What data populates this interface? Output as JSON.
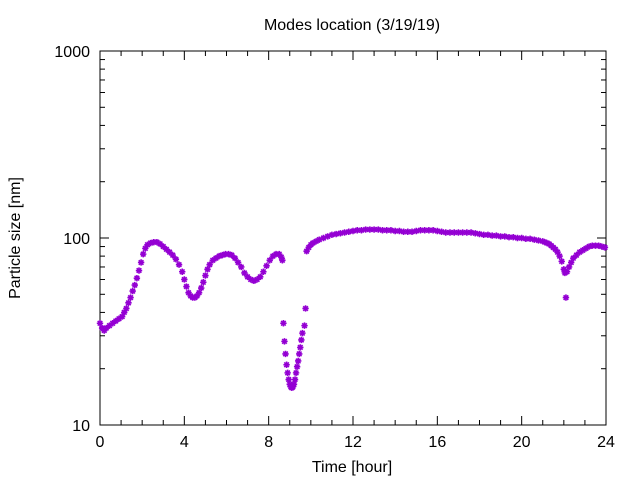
{
  "chart_data": {
    "type": "scatter",
    "title": "Modes location (3/19/19)",
    "xlabel": "Time [hour]",
    "ylabel": "Particle size [nm]",
    "xlim": [
      0,
      24
    ],
    "ylim": [
      10,
      1000
    ],
    "yscale": "log",
    "grid": false,
    "legend": "none",
    "x_ticks": [
      0,
      4,
      8,
      12,
      16,
      20,
      24
    ],
    "x_tick_labels": [
      "0",
      "4",
      "8",
      "12",
      "16",
      "20",
      "24"
    ],
    "y_ticks": [
      10,
      100,
      1000
    ],
    "y_tick_labels": [
      "10",
      "100",
      "1000"
    ],
    "series": [
      {
        "marker": "star",
        "color": "#9400D3",
        "points": [
          [
            0.0,
            35
          ],
          [
            0.1,
            33
          ],
          [
            0.2,
            32
          ],
          [
            0.3,
            33
          ],
          [
            0.45,
            34
          ],
          [
            0.6,
            35
          ],
          [
            0.75,
            36
          ],
          [
            0.9,
            37
          ],
          [
            1.05,
            38
          ],
          [
            1.15,
            40
          ],
          [
            1.25,
            42
          ],
          [
            1.35,
            45
          ],
          [
            1.45,
            48
          ],
          [
            1.55,
            52
          ],
          [
            1.65,
            56
          ],
          [
            1.75,
            61
          ],
          [
            1.85,
            67
          ],
          [
            1.95,
            74
          ],
          [
            2.05,
            82
          ],
          [
            2.15,
            88
          ],
          [
            2.25,
            92
          ],
          [
            2.4,
            94
          ],
          [
            2.55,
            95
          ],
          [
            2.7,
            95
          ],
          [
            2.85,
            93
          ],
          [
            3.0,
            90
          ],
          [
            3.15,
            87
          ],
          [
            3.3,
            84
          ],
          [
            3.45,
            81
          ],
          [
            3.6,
            77
          ],
          [
            3.75,
            72
          ],
          [
            3.9,
            66
          ],
          [
            4.0,
            60
          ],
          [
            4.1,
            55
          ],
          [
            4.2,
            51
          ],
          [
            4.3,
            49
          ],
          [
            4.4,
            48
          ],
          [
            4.5,
            48
          ],
          [
            4.6,
            49
          ],
          [
            4.7,
            51
          ],
          [
            4.8,
            54
          ],
          [
            4.9,
            58
          ],
          [
            5.0,
            63
          ],
          [
            5.1,
            68
          ],
          [
            5.2,
            72
          ],
          [
            5.35,
            76
          ],
          [
            5.5,
            78
          ],
          [
            5.65,
            80
          ],
          [
            5.8,
            81
          ],
          [
            5.95,
            82
          ],
          [
            6.1,
            82
          ],
          [
            6.25,
            81
          ],
          [
            6.4,
            78
          ],
          [
            6.55,
            74
          ],
          [
            6.7,
            70
          ],
          [
            6.85,
            65
          ],
          [
            7.0,
            62
          ],
          [
            7.15,
            60
          ],
          [
            7.3,
            59
          ],
          [
            7.45,
            60
          ],
          [
            7.6,
            62
          ],
          [
            7.75,
            66
          ],
          [
            7.9,
            71
          ],
          [
            8.05,
            76
          ],
          [
            8.2,
            80
          ],
          [
            8.35,
            82
          ],
          [
            8.5,
            82
          ],
          [
            8.6,
            79
          ],
          [
            8.65,
            76
          ],
          [
            8.7,
            35
          ],
          [
            8.75,
            28
          ],
          [
            8.8,
            24
          ],
          [
            8.85,
            21
          ],
          [
            8.9,
            19
          ],
          [
            8.95,
            17.5
          ],
          [
            9.0,
            16.5
          ],
          [
            9.05,
            16
          ],
          [
            9.1,
            15.8
          ],
          [
            9.15,
            16
          ],
          [
            9.2,
            16.5
          ],
          [
            9.25,
            17.5
          ],
          [
            9.3,
            19
          ],
          [
            9.35,
            20.5
          ],
          [
            9.4,
            22
          ],
          [
            9.45,
            24
          ],
          [
            9.5,
            26
          ],
          [
            9.55,
            28.5
          ],
          [
            9.6,
            31
          ],
          [
            9.7,
            34
          ],
          [
            9.75,
            42
          ],
          [
            9.8,
            85
          ],
          [
            9.9,
            89
          ],
          [
            10.0,
            92
          ],
          [
            10.1,
            94
          ],
          [
            10.25,
            96
          ],
          [
            10.4,
            98
          ],
          [
            10.6,
            100
          ],
          [
            10.8,
            102
          ],
          [
            11.0,
            104
          ],
          [
            11.2,
            105
          ],
          [
            11.4,
            106
          ],
          [
            11.6,
            107
          ],
          [
            11.8,
            108
          ],
          [
            12.0,
            109
          ],
          [
            12.2,
            110
          ],
          [
            12.4,
            110
          ],
          [
            12.6,
            111
          ],
          [
            12.8,
            111
          ],
          [
            13.0,
            111
          ],
          [
            13.2,
            111
          ],
          [
            13.4,
            110
          ],
          [
            13.6,
            110
          ],
          [
            13.8,
            110
          ],
          [
            14.0,
            109
          ],
          [
            14.2,
            109
          ],
          [
            14.4,
            108
          ],
          [
            14.6,
            108
          ],
          [
            14.8,
            108
          ],
          [
            15.0,
            109
          ],
          [
            15.2,
            110
          ],
          [
            15.4,
            110
          ],
          [
            15.6,
            110
          ],
          [
            15.8,
            110
          ],
          [
            16.0,
            109
          ],
          [
            16.2,
            108
          ],
          [
            16.4,
            107
          ],
          [
            16.6,
            107
          ],
          [
            16.8,
            107
          ],
          [
            17.0,
            107
          ],
          [
            17.2,
            107
          ],
          [
            17.4,
            107
          ],
          [
            17.6,
            107
          ],
          [
            17.8,
            106
          ],
          [
            18.0,
            105
          ],
          [
            18.2,
            104
          ],
          [
            18.4,
            104
          ],
          [
            18.6,
            103
          ],
          [
            18.8,
            103
          ],
          [
            19.0,
            102
          ],
          [
            19.2,
            102
          ],
          [
            19.4,
            101
          ],
          [
            19.6,
            101
          ],
          [
            19.8,
            100
          ],
          [
            20.0,
            100
          ],
          [
            20.2,
            99
          ],
          [
            20.4,
            99
          ],
          [
            20.6,
            98
          ],
          [
            20.8,
            97
          ],
          [
            21.0,
            96
          ],
          [
            21.1,
            95
          ],
          [
            21.2,
            94
          ],
          [
            21.3,
            93
          ],
          [
            21.4,
            91
          ],
          [
            21.5,
            89
          ],
          [
            21.6,
            87
          ],
          [
            21.7,
            84
          ],
          [
            21.8,
            80
          ],
          [
            21.9,
            75
          ],
          [
            22.0,
            68
          ],
          [
            22.05,
            65
          ],
          [
            22.1,
            48
          ],
          [
            22.15,
            66
          ],
          [
            22.25,
            70
          ],
          [
            22.35,
            74
          ],
          [
            22.45,
            78
          ],
          [
            22.6,
            81
          ],
          [
            22.75,
            84
          ],
          [
            22.9,
            86
          ],
          [
            23.05,
            88
          ],
          [
            23.2,
            90
          ],
          [
            23.35,
            91
          ],
          [
            23.5,
            91
          ],
          [
            23.65,
            91
          ],
          [
            23.8,
            90
          ],
          [
            23.95,
            89
          ]
        ]
      }
    ]
  }
}
